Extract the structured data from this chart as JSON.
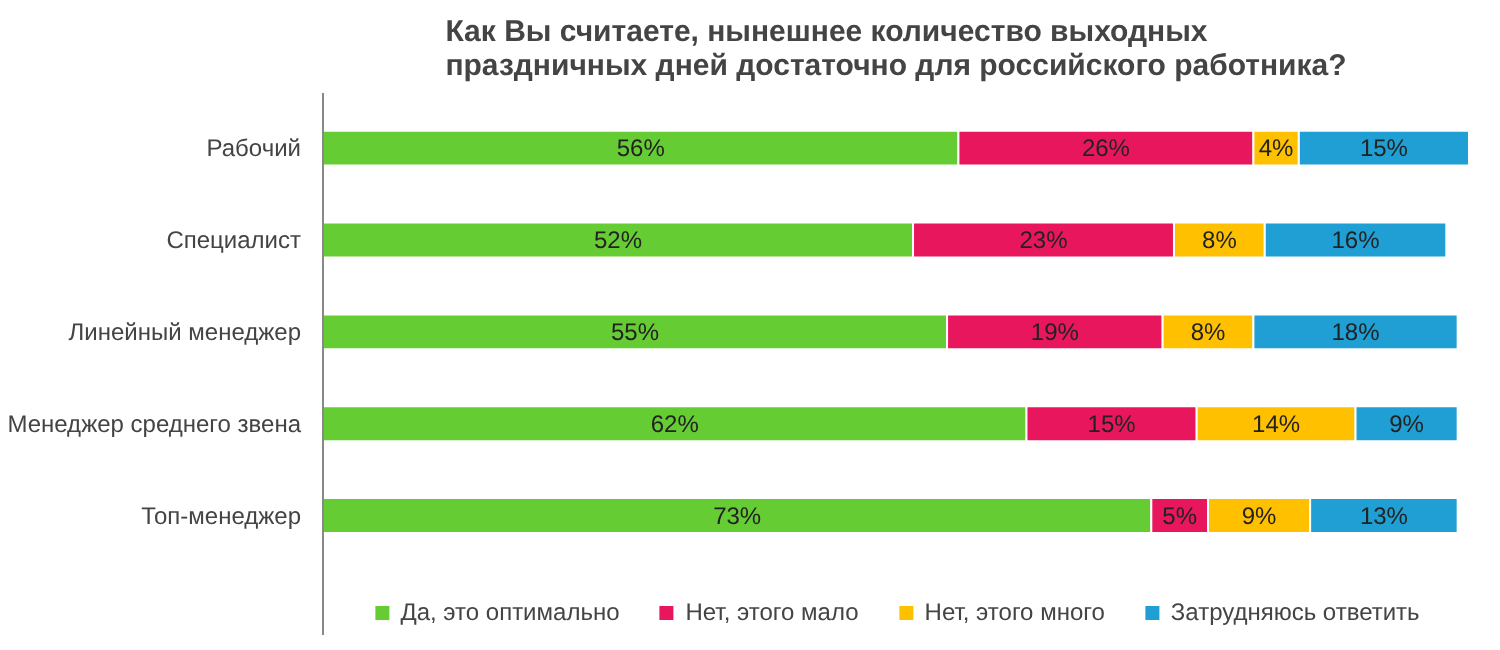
{
  "chart_data": {
    "type": "bar",
    "orientation": "horizontal",
    "stacked": true,
    "legend": "bottom",
    "title": "Как Вы считаете, нынешнее количество выходных\nпраздничных дней достаточно для российского работника?",
    "categories": [
      "Рабочий",
      "Специалист",
      "Линейный менеджер",
      "Менеджер среднего звена",
      "Топ-менеджер"
    ],
    "series": [
      {
        "name": "Да, это оптимально",
        "color": "#66cc33",
        "values": [
          56,
          52,
          55,
          62,
          73
        ],
        "value_labels": [
          "56%",
          "52%",
          "55%",
          "62%",
          "73%"
        ]
      },
      {
        "name": "Нет, этого мало",
        "color": "#e8175d",
        "values": [
          26,
          23,
          19,
          15,
          5
        ],
        "value_labels": [
          "26%",
          "23%",
          "19%",
          "15%",
          "5%"
        ]
      },
      {
        "name": "Нет, этого много",
        "color": "#ffc000",
        "values": [
          4,
          8,
          8,
          14,
          9
        ],
        "value_labels": [
          "4%",
          "8%",
          "8%",
          "14%",
          "9%"
        ]
      },
      {
        "name": "Затрудняюсь ответить",
        "color": "#1f9fd3",
        "values": [
          15,
          16,
          18,
          9,
          13
        ],
        "value_labels": [
          "15%",
          "16%",
          "18%",
          "9%",
          "13%"
        ]
      }
    ]
  }
}
